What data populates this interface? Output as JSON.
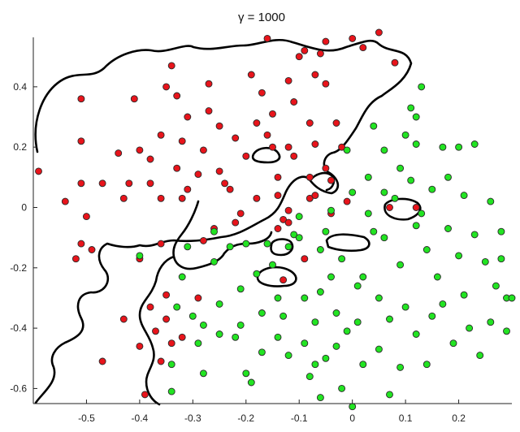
{
  "chart_data": {
    "type": "scatter",
    "title": "γ = 1000",
    "xlabel": "",
    "ylabel": "",
    "xlim": [
      -0.6,
      0.3
    ],
    "ylim": [
      -0.65,
      0.58
    ],
    "xticks": [
      -0.5,
      -0.4,
      -0.3,
      -0.2,
      -0.1,
      0,
      0.1,
      0.2
    ],
    "xtick_labels": [
      "-0.5",
      "-0.4",
      "-0.3",
      "-0.2",
      "-0.1",
      "0",
      "0.1",
      "0.2"
    ],
    "yticks": [
      -0.6,
      -0.4,
      -0.2,
      0,
      0.2,
      0.4
    ],
    "ytick_labels": [
      "-0.6",
      "-0.4",
      "-0.2",
      "0",
      "0.2",
      "0.4"
    ],
    "grid": false,
    "legend": "none",
    "colors": {
      "class_red": "#e8141b",
      "class_green": "#22e422",
      "boundary": "#000000"
    },
    "series": [
      {
        "color": "#e8141b",
        "points": [
          [
            -0.59,
            0.12
          ],
          [
            -0.54,
            0.02
          ],
          [
            -0.52,
            -0.17
          ],
          [
            -0.51,
            -0.12
          ],
          [
            -0.51,
            0.08
          ],
          [
            -0.51,
            0.22
          ],
          [
            -0.51,
            0.36
          ],
          [
            -0.5,
            -0.03
          ],
          [
            -0.49,
            -0.14
          ],
          [
            -0.47,
            0.08
          ],
          [
            -0.47,
            -0.51
          ],
          [
            -0.44,
            0.18
          ],
          [
            -0.43,
            -0.37
          ],
          [
            -0.43,
            0.03
          ],
          [
            -0.42,
            0.08
          ],
          [
            -0.41,
            0.36
          ],
          [
            -0.4,
            0.19
          ],
          [
            -0.4,
            -0.17
          ],
          [
            -0.4,
            -0.46
          ],
          [
            -0.39,
            -0.62
          ],
          [
            -0.38,
            0.08
          ],
          [
            -0.38,
            0.16
          ],
          [
            -0.38,
            -0.33
          ],
          [
            -0.37,
            -0.41
          ],
          [
            -0.36,
            -0.51
          ],
          [
            -0.36,
            -0.12
          ],
          [
            -0.36,
            0.03
          ],
          [
            -0.36,
            0.24
          ],
          [
            -0.35,
            0.4
          ],
          [
            -0.34,
            0.47
          ],
          [
            -0.35,
            -0.29
          ],
          [
            -0.35,
            -0.37
          ],
          [
            -0.34,
            -0.45
          ],
          [
            -0.33,
            0.13
          ],
          [
            -0.33,
            0.37
          ],
          [
            -0.32,
            0.03
          ],
          [
            -0.32,
            0.22
          ],
          [
            -0.32,
            -0.43
          ],
          [
            -0.31,
            0.06
          ],
          [
            -0.31,
            0.3
          ],
          [
            -0.29,
            -0.3
          ],
          [
            -0.29,
            0.11
          ],
          [
            -0.28,
            -0.11
          ],
          [
            -0.28,
            0.19
          ],
          [
            -0.27,
            0.32
          ],
          [
            -0.27,
            0.41
          ],
          [
            -0.26,
            -0.07
          ],
          [
            -0.25,
            0.12
          ],
          [
            -0.24,
            0.08
          ],
          [
            -0.23,
            0.06
          ],
          [
            -0.22,
            -0.05
          ],
          [
            -0.22,
            0.23
          ],
          [
            -0.21,
            -0.02
          ],
          [
            -0.2,
            0.17
          ],
          [
            -0.19,
            0.44
          ],
          [
            -0.18,
            0.03
          ],
          [
            -0.18,
            0.28
          ],
          [
            -0.17,
            0.38
          ],
          [
            -0.16,
            0.24
          ],
          [
            -0.15,
            0.2
          ],
          [
            -0.15,
            0.31
          ],
          [
            -0.14,
            0.1
          ],
          [
            -0.14,
            -0.07
          ],
          [
            -0.13,
            -0.04
          ],
          [
            -0.12,
            -0.01
          ],
          [
            -0.12,
            -0.05
          ],
          [
            -0.12,
            0.2
          ],
          [
            -0.12,
            0.42
          ],
          [
            -0.11,
            0.17
          ],
          [
            -0.11,
            0.35
          ],
          [
            -0.09,
            -0.17
          ],
          [
            -0.08,
            0.03
          ],
          [
            -0.08,
            0.1
          ],
          [
            -0.08,
            0.28
          ],
          [
            -0.07,
            0.21
          ],
          [
            -0.07,
            0.44
          ],
          [
            -0.05,
            0.13
          ],
          [
            -0.05,
            0.41
          ],
          [
            -0.05,
            0.55
          ],
          [
            -0.04,
            -0.02
          ],
          [
            -0.04,
            0.09
          ],
          [
            -0.03,
            0.28
          ],
          [
            -0.02,
            0.2
          ],
          [
            -0.01,
            0.02
          ],
          [
            -0.13,
            -0.24
          ],
          [
            -0.1,
            0.5
          ],
          [
            -0.09,
            0.52
          ],
          [
            0.0,
            0.56
          ],
          [
            0.02,
            0.53
          ],
          [
            0.05,
            0.58
          ],
          [
            0.07,
            0.0
          ],
          [
            0.08,
            0.48
          ],
          [
            -0.06,
            0.51
          ],
          [
            0.12,
            0.0
          ],
          [
            -0.07,
            0.04
          ],
          [
            -0.14,
            0.04
          ],
          [
            -0.16,
            0.56
          ],
          [
            -0.25,
            0.27
          ]
        ]
      },
      {
        "color": "#22e422",
        "points": [
          [
            -0.4,
            -0.16
          ],
          [
            -0.34,
            -0.52
          ],
          [
            -0.34,
            -0.61
          ],
          [
            -0.33,
            -0.33
          ],
          [
            -0.32,
            -0.23
          ],
          [
            -0.31,
            -0.13
          ],
          [
            -0.3,
            -0.36
          ],
          [
            -0.29,
            -0.45
          ],
          [
            -0.28,
            -0.39
          ],
          [
            -0.28,
            -0.55
          ],
          [
            -0.26,
            -0.18
          ],
          [
            -0.25,
            -0.32
          ],
          [
            -0.25,
            -0.42
          ],
          [
            -0.23,
            -0.13
          ],
          [
            -0.22,
            -0.43
          ],
          [
            -0.21,
            -0.27
          ],
          [
            -0.21,
            -0.39
          ],
          [
            -0.2,
            -0.12
          ],
          [
            -0.2,
            -0.55
          ],
          [
            -0.19,
            -0.58
          ],
          [
            -0.18,
            -0.22
          ],
          [
            -0.17,
            -0.35
          ],
          [
            -0.17,
            -0.48
          ],
          [
            -0.16,
            -0.12
          ],
          [
            -0.15,
            -0.19
          ],
          [
            -0.14,
            -0.3
          ],
          [
            -0.14,
            -0.43
          ],
          [
            -0.13,
            -0.36
          ],
          [
            -0.12,
            -0.49
          ],
          [
            -0.11,
            -0.09
          ],
          [
            -0.1,
            -0.03
          ],
          [
            -0.1,
            -0.1
          ],
          [
            -0.09,
            -0.3
          ],
          [
            -0.09,
            -0.45
          ],
          [
            -0.08,
            -0.56
          ],
          [
            -0.07,
            -0.38
          ],
          [
            -0.07,
            -0.52
          ],
          [
            -0.06,
            -0.28
          ],
          [
            -0.06,
            -0.14
          ],
          [
            -0.05,
            -0.08
          ],
          [
            -0.05,
            -0.5
          ],
          [
            -0.04,
            -0.01
          ],
          [
            -0.04,
            -0.23
          ],
          [
            -0.03,
            -0.35
          ],
          [
            -0.03,
            -0.46
          ],
          [
            -0.02,
            -0.17
          ],
          [
            -0.02,
            -0.6
          ],
          [
            -0.01,
            -0.41
          ],
          [
            -0.01,
            0.19
          ],
          [
            0.0,
            0.05
          ],
          [
            0.01,
            -0.26
          ],
          [
            0.01,
            -0.38
          ],
          [
            0.02,
            -0.52
          ],
          [
            0.03,
            -0.02
          ],
          [
            0.03,
            0.1
          ],
          [
            0.04,
            0.27
          ],
          [
            0.05,
            -0.3
          ],
          [
            0.05,
            -0.47
          ],
          [
            0.06,
            -0.1
          ],
          [
            0.06,
            0.05
          ],
          [
            0.06,
            0.19
          ],
          [
            0.07,
            -0.37
          ],
          [
            0.07,
            -0.62
          ],
          [
            0.08,
            0.03
          ],
          [
            0.09,
            -0.19
          ],
          [
            0.09,
            0.13
          ],
          [
            0.09,
            -0.53
          ],
          [
            0.1,
            -0.33
          ],
          [
            0.1,
            0.24
          ],
          [
            0.11,
            0.09
          ],
          [
            0.11,
            0.33
          ],
          [
            0.12,
            -0.42
          ],
          [
            0.12,
            -0.06
          ],
          [
            0.12,
            0.21
          ],
          [
            0.13,
            0.4
          ],
          [
            0.14,
            -0.14
          ],
          [
            0.14,
            -0.52
          ],
          [
            0.15,
            0.06
          ],
          [
            0.16,
            -0.23
          ],
          [
            0.17,
            -0.32
          ],
          [
            0.17,
            0.2
          ],
          [
            0.18,
            -0.07
          ],
          [
            0.18,
            0.1
          ],
          [
            0.19,
            -0.45
          ],
          [
            0.2,
            -0.16
          ],
          [
            0.21,
            0.04
          ],
          [
            0.21,
            -0.29
          ],
          [
            0.22,
            -0.4
          ],
          [
            0.23,
            0.21
          ],
          [
            0.23,
            -0.09
          ],
          [
            0.24,
            -0.49
          ],
          [
            0.25,
            -0.18
          ],
          [
            0.26,
            -0.38
          ],
          [
            0.26,
            0.02
          ],
          [
            0.27,
            -0.26
          ],
          [
            0.28,
            -0.08
          ],
          [
            0.28,
            -0.17
          ],
          [
            0.29,
            -0.3
          ],
          [
            0.29,
            -0.41
          ],
          [
            0.12,
            0.3
          ],
          [
            0.0,
            -0.66
          ],
          [
            -0.06,
            -0.63
          ],
          [
            0.02,
            -0.23
          ],
          [
            -0.12,
            -0.13
          ],
          [
            0.13,
            -0.02
          ],
          [
            -0.26,
            -0.08
          ],
          [
            0.15,
            -0.36
          ],
          [
            0.2,
            0.2
          ],
          [
            0.04,
            -0.08
          ],
          [
            0.3,
            -0.3
          ]
        ]
      }
    ]
  }
}
